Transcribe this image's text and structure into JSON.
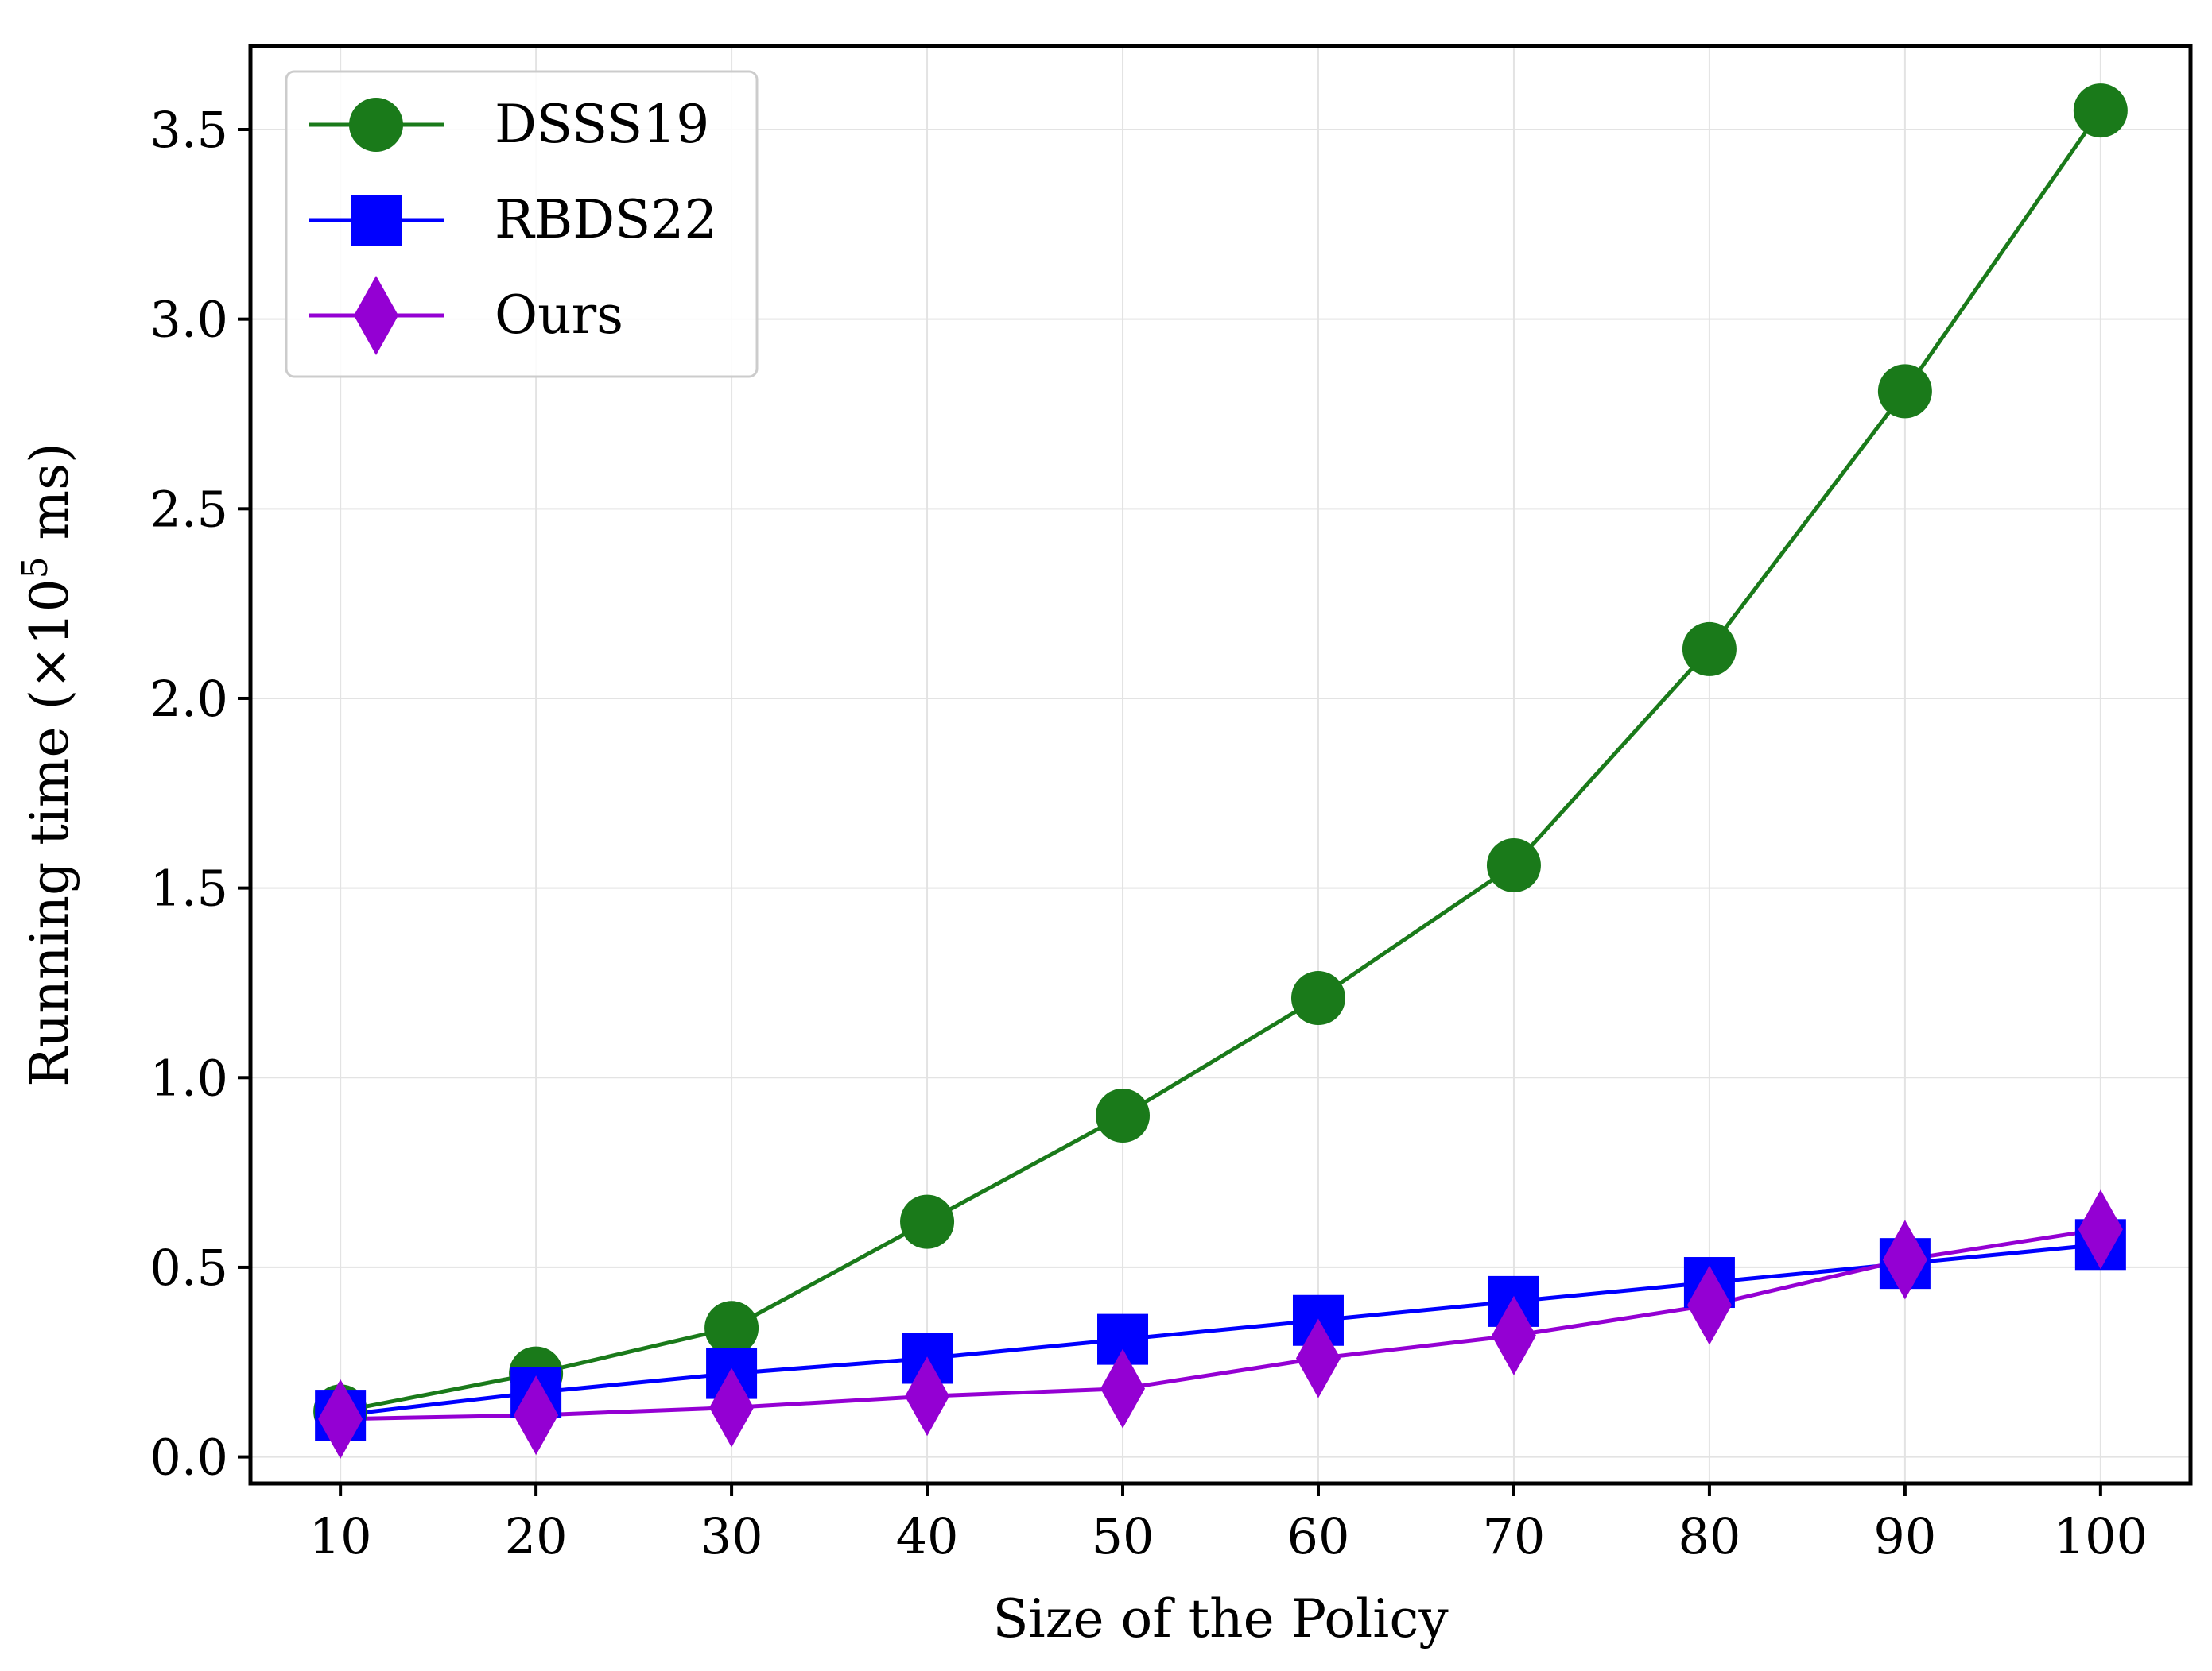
{
  "chart_data": {
    "type": "line",
    "title": "",
    "xlabel": "Size of the Policy",
    "ylabel": "Running time (×10",
    "ylabel_superscript": "5",
    "ylabel_suffix": " ms)",
    "x": [
      10,
      20,
      30,
      40,
      50,
      60,
      70,
      80,
      90,
      100
    ],
    "x_ticks": [
      "10",
      "20",
      "30",
      "40",
      "50",
      "60",
      "70",
      "80",
      "90",
      "100"
    ],
    "y_ticks": [
      "0.0",
      "0.5",
      "1.0",
      "1.5",
      "2.0",
      "2.5",
      "3.0",
      "3.5"
    ],
    "y_tick_values": [
      0.0,
      0.5,
      1.0,
      1.5,
      2.0,
      2.5,
      3.0,
      3.5
    ],
    "xlim": [
      5.4,
      104.6
    ],
    "ylim": [
      -0.07,
      3.72
    ],
    "grid": true,
    "legend_position": "top-left",
    "series": [
      {
        "name": "DSSS19",
        "color": "#1a7a1a",
        "marker": "circle",
        "values": [
          0.12,
          0.22,
          0.34,
          0.62,
          0.9,
          1.21,
          1.56,
          2.13,
          2.81,
          3.55
        ]
      },
      {
        "name": "RBDS22",
        "color": "#0000ff",
        "marker": "square",
        "values": [
          0.11,
          0.17,
          0.22,
          0.26,
          0.31,
          0.36,
          0.41,
          0.46,
          0.51,
          0.56
        ]
      },
      {
        "name": "Ours",
        "color": "#9400d3",
        "marker": "diamond",
        "values": [
          0.1,
          0.11,
          0.13,
          0.16,
          0.18,
          0.26,
          0.32,
          0.4,
          0.52,
          0.6
        ]
      }
    ]
  }
}
